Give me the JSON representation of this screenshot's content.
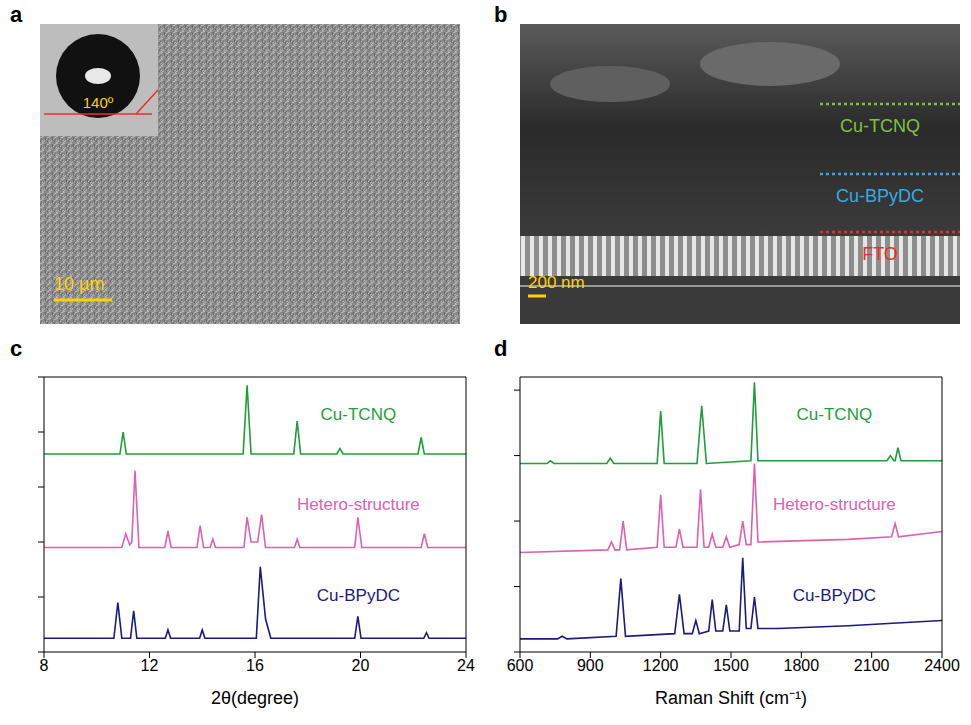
{
  "panels": [
    {
      "letter": "a",
      "inset_label": "140º",
      "scale_bar": "10 µm"
    },
    {
      "letter": "b",
      "layers": [
        {
          "label": "Cu-TCNQ",
          "color": "#7dc242"
        },
        {
          "label": "Cu-BPyDC",
          "color": "#39a9e0"
        },
        {
          "label": "FTO",
          "color": "#e8302a"
        }
      ],
      "scale_bar": "200 nm"
    }
  ],
  "chart_data": [
    {
      "letter": "c",
      "type": "line",
      "x_label": "2θ(degree)",
      "xlim": [
        8,
        24
      ],
      "xticks": [
        8,
        12,
        16,
        20,
        24
      ],
      "ylim": [
        0,
        100
      ],
      "yticks": [
        0,
        20,
        40,
        60,
        80,
        100
      ],
      "tick_labels": "x",
      "series": [
        {
          "name": "Cu-TCNQ",
          "color": "#1f9e3a",
          "x": [
            8,
            10.88,
            11.0,
            11.12,
            15.55,
            15.7,
            15.85,
            17.47,
            17.6,
            17.73,
            19.1,
            19.22,
            19.34,
            22.18,
            22.3,
            22.42,
            24
          ],
          "values": [
            72,
            72,
            80,
            72,
            72,
            97,
            72,
            72,
            84,
            72,
            72,
            74,
            72,
            72,
            78,
            72,
            72
          ]
        },
        {
          "name": "Hetero-structure",
          "color": "#e060b0",
          "x": [
            8,
            10.95,
            11.1,
            11.25,
            11.33,
            11.45,
            11.6,
            12.58,
            12.7,
            12.82,
            13.8,
            13.92,
            14.05,
            14.3,
            14.4,
            14.5,
            15.58,
            15.7,
            15.85,
            16.1,
            16.25,
            16.4,
            17.5,
            17.6,
            17.7,
            19.78,
            19.9,
            20.05,
            22.3,
            22.42,
            22.55,
            24
          ],
          "values": [
            38,
            38,
            43,
            39,
            40,
            66,
            38,
            38,
            44,
            38,
            38,
            46,
            38,
            38,
            41,
            38,
            38,
            49,
            40,
            40,
            50,
            38,
            38,
            41,
            38,
            38,
            49,
            38,
            38,
            43,
            38,
            38
          ]
        },
        {
          "name": "Cu-BPyDC",
          "color": "#1a1a80",
          "x": [
            8,
            10.65,
            10.8,
            10.95,
            11.28,
            11.4,
            11.52,
            12.6,
            12.7,
            12.8,
            13.9,
            14.0,
            14.1,
            16.05,
            16.2,
            16.4,
            16.6,
            19.78,
            19.9,
            20.02,
            22.4,
            22.5,
            22.6,
            24
          ],
          "values": [
            5,
            5,
            18,
            5,
            5,
            15,
            5,
            5,
            8,
            5,
            5,
            8,
            5,
            5,
            31,
            12,
            5,
            5,
            13,
            5,
            5,
            7,
            5,
            5
          ]
        }
      ]
    },
    {
      "letter": "d",
      "type": "line",
      "x_label": "Raman Shift (cm⁻¹)",
      "xlim": [
        600,
        2400
      ],
      "xticks": [
        600,
        900,
        1200,
        1500,
        1800,
        2100,
        2400
      ],
      "ylim": [
        0,
        105
      ],
      "yticks": [
        0,
        25,
        50,
        75,
        100
      ],
      "tick_labels": "x",
      "series": [
        {
          "name": "Cu-TCNQ",
          "color": "#1f9e3a",
          "x": [
            600,
            715,
            730,
            745,
            970,
            985,
            1000,
            1185,
            1200,
            1215,
            1355,
            1375,
            1395,
            1585,
            1600,
            1615,
            2165,
            2180,
            2195,
            2200,
            2212,
            2225,
            2400
          ],
          "values": [
            72,
            72,
            73,
            72,
            72,
            74,
            72,
            72,
            92,
            72,
            72,
            94,
            72,
            73,
            103,
            73,
            73,
            75,
            73,
            73,
            78,
            73,
            73
          ]
        },
        {
          "name": "Hetero-structure",
          "color": "#e060b0",
          "x": [
            600,
            975,
            990,
            1005,
            1025,
            1040,
            1055,
            1185,
            1200,
            1215,
            1265,
            1280,
            1295,
            1355,
            1370,
            1385,
            1405,
            1420,
            1435,
            1465,
            1480,
            1495,
            1535,
            1550,
            1565,
            1585,
            1600,
            1615,
            2000,
            2185,
            2200,
            2215,
            2400
          ],
          "values": [
            38,
            39,
            42,
            39,
            39,
            50,
            39,
            40,
            60,
            40,
            40,
            47,
            40,
            40,
            62,
            40,
            40,
            45,
            40,
            40,
            44,
            40,
            41,
            50,
            41,
            41,
            72,
            42,
            43,
            44,
            49,
            44,
            46
          ]
        },
        {
          "name": "Cu-BPyDC",
          "color": "#1a1a80",
          "x": [
            600,
            760,
            780,
            800,
            1010,
            1030,
            1050,
            1260,
            1280,
            1300,
            1335,
            1350,
            1365,
            1405,
            1420,
            1435,
            1465,
            1480,
            1495,
            1535,
            1550,
            1565,
            1585,
            1600,
            1615,
            1700,
            2000,
            2400
          ],
          "values": [
            5,
            5,
            6,
            5,
            6,
            28,
            6,
            7,
            22,
            7,
            7,
            12,
            7,
            8,
            20,
            8,
            8,
            18,
            8,
            8,
            36,
            9,
            9,
            21,
            9,
            9,
            10,
            12
          ]
        }
      ]
    }
  ]
}
